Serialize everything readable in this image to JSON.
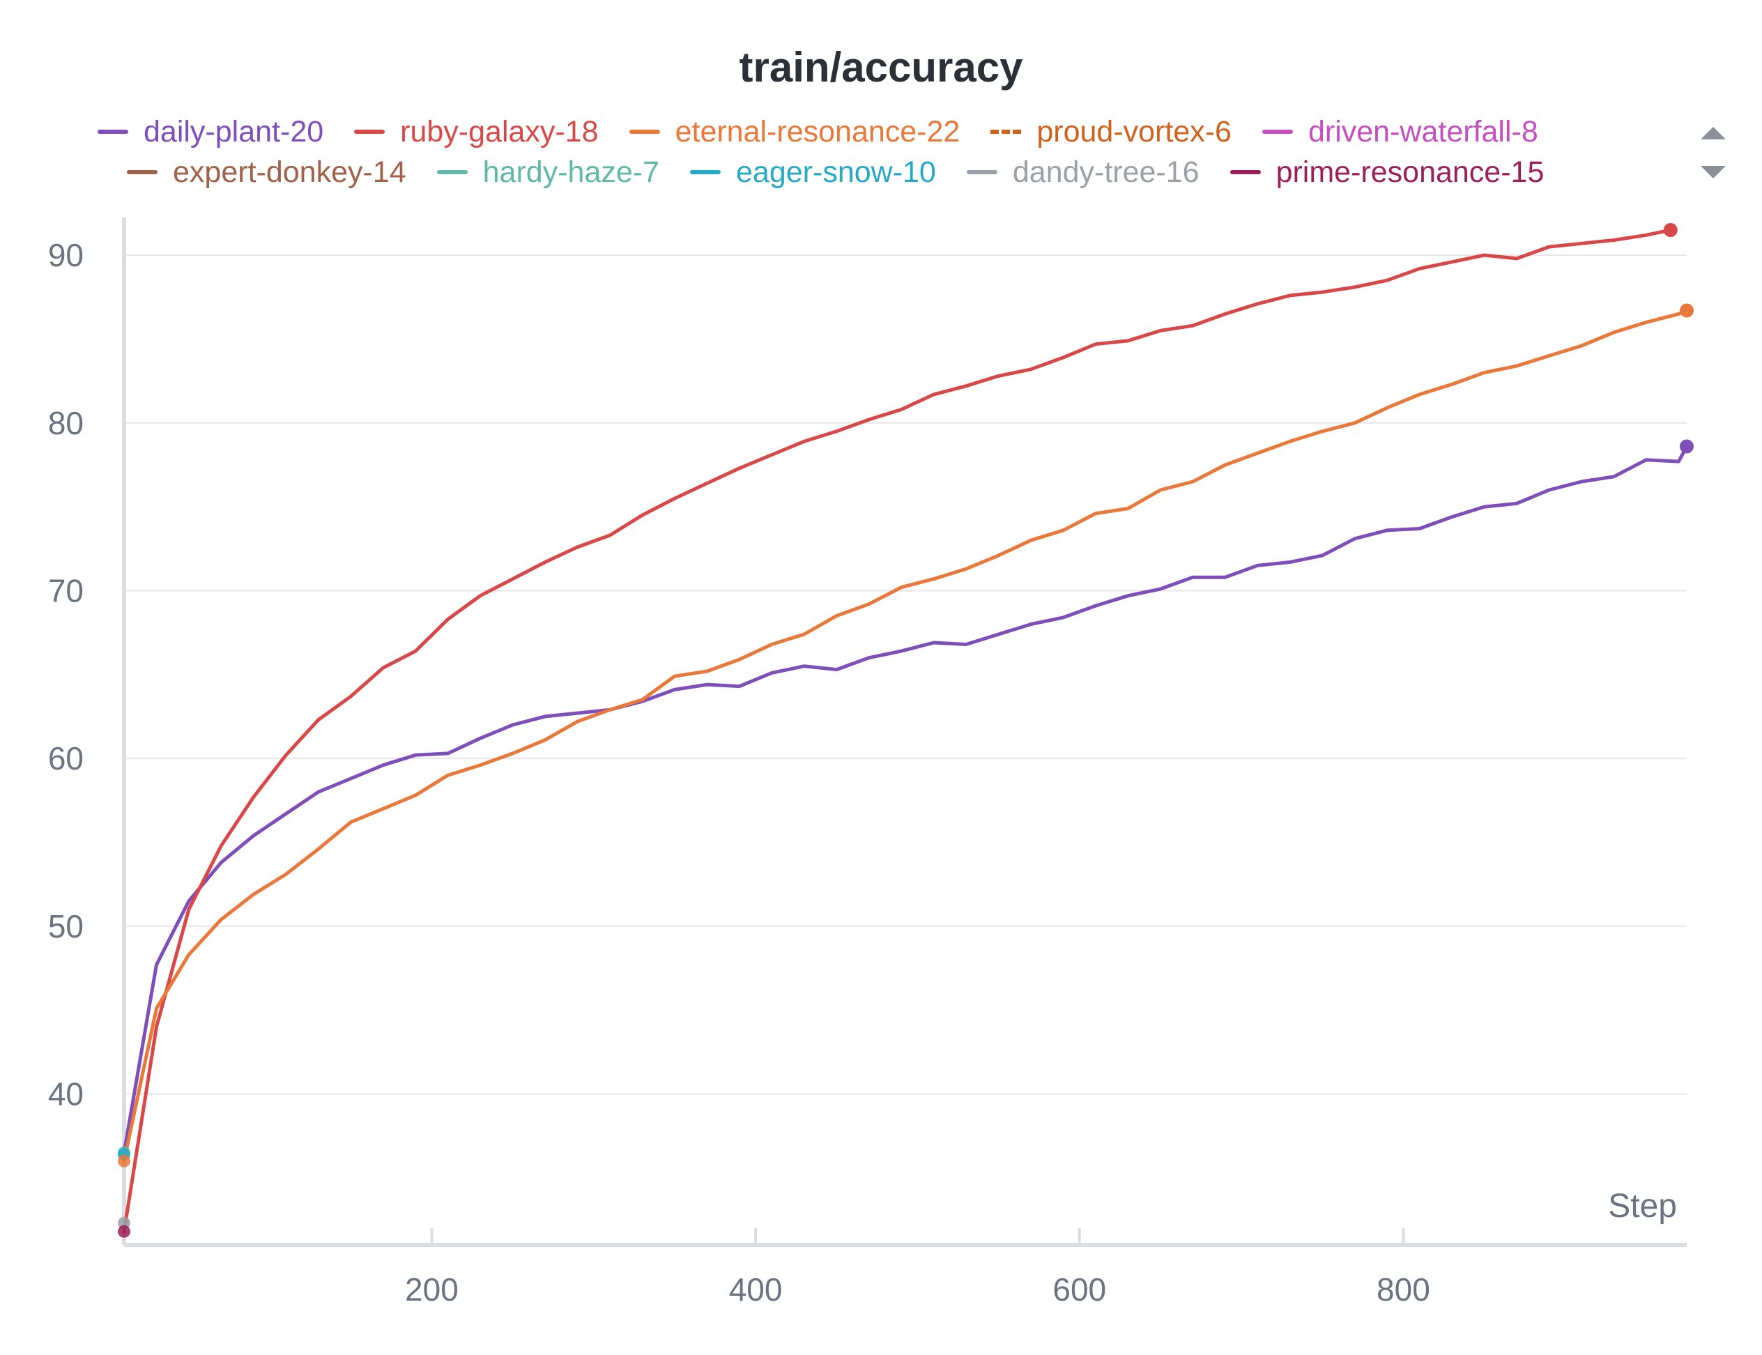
{
  "chart_data": {
    "type": "line",
    "title": "train/accuracy",
    "xlabel": "Step",
    "ylabel": "",
    "xlim": [
      10,
      975
    ],
    "ylim": [
      31,
      92
    ],
    "xticks": [
      200,
      400,
      600,
      800
    ],
    "yticks": [
      40,
      50,
      60,
      70,
      80,
      90
    ],
    "grid": "horizontal",
    "legend_position": "top",
    "series": [
      {
        "name": "daily-plant-20",
        "color": "#7e4fb8",
        "dashed": false,
        "x": [
          10,
          30,
          50,
          70,
          90,
          110,
          130,
          150,
          170,
          190,
          210,
          230,
          250,
          270,
          290,
          310,
          330,
          350,
          370,
          390,
          410,
          430,
          450,
          470,
          490,
          510,
          530,
          550,
          570,
          590,
          610,
          630,
          650,
          670,
          690,
          710,
          730,
          750,
          770,
          790,
          810,
          830,
          850,
          870,
          890,
          910,
          930,
          950,
          970,
          975
        ],
        "values": [
          36.5,
          47.7,
          51.5,
          53.8,
          55.4,
          56.7,
          58.0,
          58.8,
          59.6,
          60.2,
          60.3,
          61.2,
          62.0,
          62.5,
          62.7,
          62.9,
          63.4,
          64.1,
          64.4,
          64.3,
          65.1,
          65.5,
          65.3,
          66.0,
          66.4,
          66.9,
          66.8,
          67.4,
          68.0,
          68.4,
          69.1,
          69.7,
          70.1,
          70.8,
          70.8,
          71.5,
          71.7,
          72.1,
          73.1,
          73.6,
          73.7,
          74.4,
          75.0,
          75.2,
          76.0,
          76.5,
          76.8,
          77.8,
          77.7,
          78.6
        ]
      },
      {
        "name": "ruby-galaxy-18",
        "color": "#d94848",
        "dashed": false,
        "x": [
          10,
          30,
          50,
          70,
          90,
          110,
          130,
          150,
          170,
          190,
          210,
          230,
          250,
          270,
          290,
          310,
          330,
          350,
          370,
          390,
          410,
          430,
          450,
          470,
          490,
          510,
          530,
          550,
          570,
          590,
          610,
          630,
          650,
          670,
          690,
          710,
          730,
          750,
          770,
          790,
          810,
          830,
          850,
          870,
          890,
          910,
          930,
          950,
          965
        ],
        "values": [
          31.8,
          44.0,
          51.0,
          54.8,
          57.7,
          60.2,
          62.3,
          63.7,
          65.4,
          66.4,
          68.3,
          69.7,
          70.7,
          71.7,
          72.6,
          73.3,
          74.5,
          75.5,
          76.4,
          77.3,
          78.1,
          78.9,
          79.5,
          80.2,
          80.8,
          81.7,
          82.2,
          82.8,
          83.2,
          83.9,
          84.7,
          84.9,
          85.5,
          85.8,
          86.5,
          87.1,
          87.6,
          87.8,
          88.1,
          88.5,
          89.2,
          89.6,
          90.0,
          89.8,
          90.5,
          90.7,
          90.9,
          91.2,
          91.5
        ]
      },
      {
        "name": "eternal-resonance-22",
        "color": "#e8793a",
        "dashed": false,
        "x": [
          10,
          30,
          50,
          70,
          90,
          110,
          130,
          150,
          170,
          190,
          210,
          230,
          250,
          270,
          290,
          310,
          330,
          350,
          370,
          390,
          410,
          430,
          450,
          470,
          490,
          510,
          530,
          550,
          570,
          590,
          610,
          630,
          650,
          670,
          690,
          710,
          730,
          750,
          770,
          790,
          810,
          830,
          850,
          870,
          890,
          910,
          930,
          950,
          970,
          975
        ],
        "values": [
          36.0,
          45.1,
          48.3,
          50.4,
          51.9,
          53.1,
          54.6,
          56.2,
          57.0,
          57.8,
          59.0,
          59.6,
          60.3,
          61.1,
          62.2,
          62.9,
          63.5,
          64.9,
          65.2,
          65.9,
          66.8,
          67.4,
          68.5,
          69.2,
          70.2,
          70.7,
          71.3,
          72.1,
          73.0,
          73.6,
          74.6,
          74.9,
          76.0,
          76.5,
          77.5,
          78.2,
          78.9,
          79.5,
          80.0,
          80.9,
          81.7,
          82.3,
          83.0,
          83.4,
          84.0,
          84.6,
          85.4,
          86.0,
          86.5,
          86.7
        ]
      }
    ],
    "legend_entries": [
      {
        "name": "daily-plant-20",
        "color": "#7e4fb8",
        "dashed": false
      },
      {
        "name": "ruby-galaxy-18",
        "color": "#d94848",
        "dashed": false
      },
      {
        "name": "eternal-resonance-22",
        "color": "#e8793a",
        "dashed": false
      },
      {
        "name": "proud-vortex-6",
        "color": "#d0621e",
        "dashed": true
      },
      {
        "name": "driven-waterfall-8",
        "color": "#c34fc0",
        "dashed": false
      },
      {
        "name": "expert-donkey-14",
        "color": "#a0624a",
        "dashed": false
      },
      {
        "name": "hardy-haze-7",
        "color": "#5fb9a6",
        "dashed": false
      },
      {
        "name": "eager-snow-10",
        "color": "#26a9c7",
        "dashed": false
      },
      {
        "name": "dandy-tree-16",
        "color": "#9aa0a6",
        "dashed": false
      },
      {
        "name": "prime-resonance-15",
        "color": "#9b2059",
        "dashed": false
      }
    ],
    "start_points": [
      {
        "color": "#9aa0a6",
        "x": 10,
        "y": 32.3
      },
      {
        "color": "#9b2059",
        "x": 10,
        "y": 31.8
      },
      {
        "color": "#5fb9a6",
        "x": 10,
        "y": 36.5
      },
      {
        "color": "#26a9c7",
        "x": 10,
        "y": 36.4
      },
      {
        "color": "#e8793a",
        "x": 10,
        "y": 36.0
      }
    ],
    "legend_scroll": {
      "up_icon": "triangle-up-icon",
      "down_icon": "triangle-down-icon"
    }
  }
}
